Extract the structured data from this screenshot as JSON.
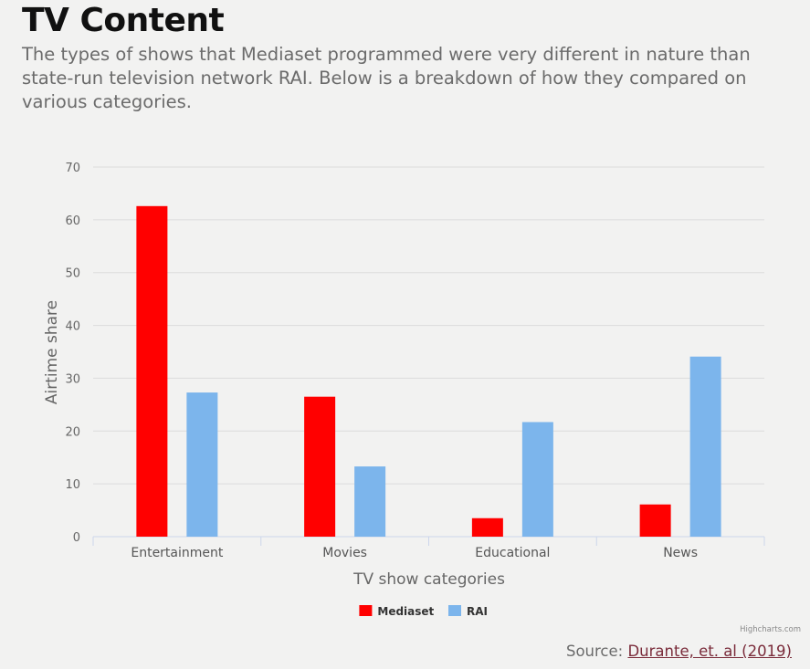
{
  "header": {
    "title": "TV Content",
    "subtitle": "The types of shows that Mediaset programmed were very different in nature than state-run television network RAI. Below is a breakdown of how they compared on various categories."
  },
  "chart_data": {
    "type": "bar",
    "categories": [
      "Entertainment",
      "Movies",
      "Educational",
      "News"
    ],
    "series": [
      {
        "name": "Mediaset",
        "color": "#ff0000",
        "values": [
          62.6,
          26.5,
          3.5,
          6.1
        ]
      },
      {
        "name": "RAI",
        "color": "#7cb5ec",
        "values": [
          27.3,
          13.3,
          21.7,
          34.1
        ]
      }
    ],
    "xlabel": "TV show categories",
    "ylabel": "Airtime share",
    "ylim": [
      0,
      70
    ],
    "yticks": [
      0,
      10,
      20,
      30,
      40,
      50,
      60,
      70
    ],
    "grid": true,
    "legend_position": "bottom-center"
  },
  "footer": {
    "credits": "Highcharts.com",
    "source_prefix": "Source: ",
    "source_link": "Durante, et. al (2019)"
  }
}
